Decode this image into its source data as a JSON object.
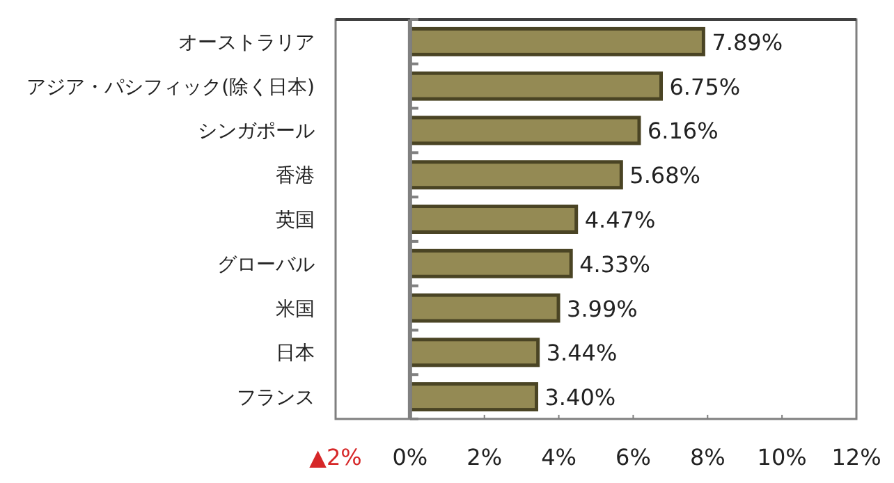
{
  "chart_data": {
    "type": "bar",
    "orientation": "horizontal",
    "categories": [
      "オーストラリア",
      "アジア・パシフィック(除く日本)",
      "シンガポール",
      "香港",
      "英国",
      "グローバル",
      "米国",
      "日本",
      "フランス"
    ],
    "values": [
      7.89,
      6.75,
      6.16,
      5.68,
      4.47,
      4.33,
      3.99,
      3.44,
      3.4
    ],
    "color": "#948a54",
    "xlim": [
      -2,
      12
    ],
    "xticks": [
      {
        "value": -2,
        "label": "▲2%"
      },
      {
        "value": 0,
        "label": "0%"
      },
      {
        "value": 2,
        "label": "2%"
      },
      {
        "value": 4,
        "label": "4%"
      },
      {
        "value": 6,
        "label": "6%"
      },
      {
        "value": 8,
        "label": "8%"
      },
      {
        "value": 10,
        "label": "10%"
      },
      {
        "value": 12,
        "label": "12%"
      }
    ],
    "value_labels": [
      "7.89%",
      "6.75%",
      "6.16%",
      "5.68%",
      "4.47%",
      "4.33%",
      "3.99%",
      "3.44%",
      "3.40%"
    ]
  }
}
